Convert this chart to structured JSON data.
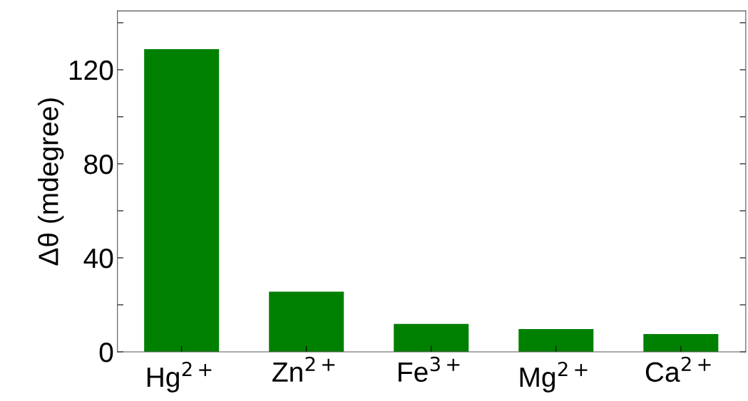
{
  "chart_data": {
    "type": "bar",
    "ylabel": "Δθ (mdegree)",
    "categories": [
      "Hg$^{2+}$",
      "Zn$^{2+}$",
      "Fe$^{3+}$",
      "Mg$^{2+}$",
      "Ca$^{2+}$"
    ],
    "values": [
      128.8,
      25.6,
      11.9,
      9.7,
      7.6
    ],
    "color": "#008000",
    "ylim": [
      0,
      145
    ],
    "yticks": [
      0,
      {
        "value": 20,
        "label": null
      },
      40,
      {
        "value": 60,
        "label": null
      },
      80,
      {
        "value": 100,
        "label": null
      },
      120,
      {
        "value": 140,
        "label": null
      }
    ],
    "grid": false
  }
}
